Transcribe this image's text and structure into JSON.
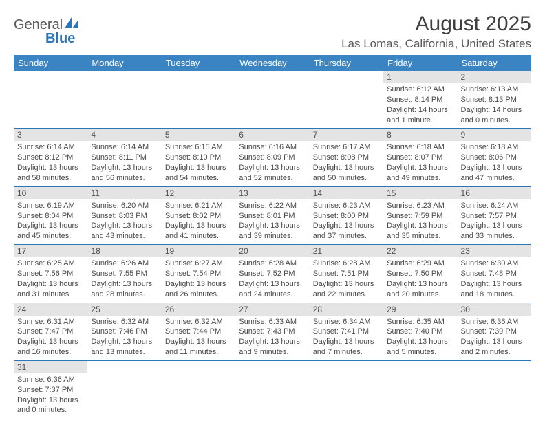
{
  "logo": {
    "word1": "General",
    "word2": "Blue"
  },
  "title": "August 2025",
  "location": "Las Lomas, California, United States",
  "colors": {
    "header_bg": "#3b84c4",
    "border": "#2b76bb",
    "daynum_bg": "#e4e4e4",
    "text": "#4a4a4a",
    "logo_gray": "#5a5a5a",
    "logo_blue": "#2b76bb"
  },
  "day_headers": [
    "Sunday",
    "Monday",
    "Tuesday",
    "Wednesday",
    "Thursday",
    "Friday",
    "Saturday"
  ],
  "weeks": [
    [
      null,
      null,
      null,
      null,
      null,
      {
        "n": "1",
        "sr": "Sunrise: 6:12 AM",
        "ss": "Sunset: 8:14 PM",
        "dl": "Daylight: 14 hours and 1 minute."
      },
      {
        "n": "2",
        "sr": "Sunrise: 6:13 AM",
        "ss": "Sunset: 8:13 PM",
        "dl": "Daylight: 14 hours and 0 minutes."
      }
    ],
    [
      {
        "n": "3",
        "sr": "Sunrise: 6:14 AM",
        "ss": "Sunset: 8:12 PM",
        "dl": "Daylight: 13 hours and 58 minutes."
      },
      {
        "n": "4",
        "sr": "Sunrise: 6:14 AM",
        "ss": "Sunset: 8:11 PM",
        "dl": "Daylight: 13 hours and 56 minutes."
      },
      {
        "n": "5",
        "sr": "Sunrise: 6:15 AM",
        "ss": "Sunset: 8:10 PM",
        "dl": "Daylight: 13 hours and 54 minutes."
      },
      {
        "n": "6",
        "sr": "Sunrise: 6:16 AM",
        "ss": "Sunset: 8:09 PM",
        "dl": "Daylight: 13 hours and 52 minutes."
      },
      {
        "n": "7",
        "sr": "Sunrise: 6:17 AM",
        "ss": "Sunset: 8:08 PM",
        "dl": "Daylight: 13 hours and 50 minutes."
      },
      {
        "n": "8",
        "sr": "Sunrise: 6:18 AM",
        "ss": "Sunset: 8:07 PM",
        "dl": "Daylight: 13 hours and 49 minutes."
      },
      {
        "n": "9",
        "sr": "Sunrise: 6:18 AM",
        "ss": "Sunset: 8:06 PM",
        "dl": "Daylight: 13 hours and 47 minutes."
      }
    ],
    [
      {
        "n": "10",
        "sr": "Sunrise: 6:19 AM",
        "ss": "Sunset: 8:04 PM",
        "dl": "Daylight: 13 hours and 45 minutes."
      },
      {
        "n": "11",
        "sr": "Sunrise: 6:20 AM",
        "ss": "Sunset: 8:03 PM",
        "dl": "Daylight: 13 hours and 43 minutes."
      },
      {
        "n": "12",
        "sr": "Sunrise: 6:21 AM",
        "ss": "Sunset: 8:02 PM",
        "dl": "Daylight: 13 hours and 41 minutes."
      },
      {
        "n": "13",
        "sr": "Sunrise: 6:22 AM",
        "ss": "Sunset: 8:01 PM",
        "dl": "Daylight: 13 hours and 39 minutes."
      },
      {
        "n": "14",
        "sr": "Sunrise: 6:23 AM",
        "ss": "Sunset: 8:00 PM",
        "dl": "Daylight: 13 hours and 37 minutes."
      },
      {
        "n": "15",
        "sr": "Sunrise: 6:23 AM",
        "ss": "Sunset: 7:59 PM",
        "dl": "Daylight: 13 hours and 35 minutes."
      },
      {
        "n": "16",
        "sr": "Sunrise: 6:24 AM",
        "ss": "Sunset: 7:57 PM",
        "dl": "Daylight: 13 hours and 33 minutes."
      }
    ],
    [
      {
        "n": "17",
        "sr": "Sunrise: 6:25 AM",
        "ss": "Sunset: 7:56 PM",
        "dl": "Daylight: 13 hours and 31 minutes."
      },
      {
        "n": "18",
        "sr": "Sunrise: 6:26 AM",
        "ss": "Sunset: 7:55 PM",
        "dl": "Daylight: 13 hours and 28 minutes."
      },
      {
        "n": "19",
        "sr": "Sunrise: 6:27 AM",
        "ss": "Sunset: 7:54 PM",
        "dl": "Daylight: 13 hours and 26 minutes."
      },
      {
        "n": "20",
        "sr": "Sunrise: 6:28 AM",
        "ss": "Sunset: 7:52 PM",
        "dl": "Daylight: 13 hours and 24 minutes."
      },
      {
        "n": "21",
        "sr": "Sunrise: 6:28 AM",
        "ss": "Sunset: 7:51 PM",
        "dl": "Daylight: 13 hours and 22 minutes."
      },
      {
        "n": "22",
        "sr": "Sunrise: 6:29 AM",
        "ss": "Sunset: 7:50 PM",
        "dl": "Daylight: 13 hours and 20 minutes."
      },
      {
        "n": "23",
        "sr": "Sunrise: 6:30 AM",
        "ss": "Sunset: 7:48 PM",
        "dl": "Daylight: 13 hours and 18 minutes."
      }
    ],
    [
      {
        "n": "24",
        "sr": "Sunrise: 6:31 AM",
        "ss": "Sunset: 7:47 PM",
        "dl": "Daylight: 13 hours and 16 minutes."
      },
      {
        "n": "25",
        "sr": "Sunrise: 6:32 AM",
        "ss": "Sunset: 7:46 PM",
        "dl": "Daylight: 13 hours and 13 minutes."
      },
      {
        "n": "26",
        "sr": "Sunrise: 6:32 AM",
        "ss": "Sunset: 7:44 PM",
        "dl": "Daylight: 13 hours and 11 minutes."
      },
      {
        "n": "27",
        "sr": "Sunrise: 6:33 AM",
        "ss": "Sunset: 7:43 PM",
        "dl": "Daylight: 13 hours and 9 minutes."
      },
      {
        "n": "28",
        "sr": "Sunrise: 6:34 AM",
        "ss": "Sunset: 7:41 PM",
        "dl": "Daylight: 13 hours and 7 minutes."
      },
      {
        "n": "29",
        "sr": "Sunrise: 6:35 AM",
        "ss": "Sunset: 7:40 PM",
        "dl": "Daylight: 13 hours and 5 minutes."
      },
      {
        "n": "30",
        "sr": "Sunrise: 6:36 AM",
        "ss": "Sunset: 7:39 PM",
        "dl": "Daylight: 13 hours and 2 minutes."
      }
    ],
    [
      {
        "n": "31",
        "sr": "Sunrise: 6:36 AM",
        "ss": "Sunset: 7:37 PM",
        "dl": "Daylight: 13 hours and 0 minutes."
      },
      null,
      null,
      null,
      null,
      null,
      null
    ]
  ]
}
